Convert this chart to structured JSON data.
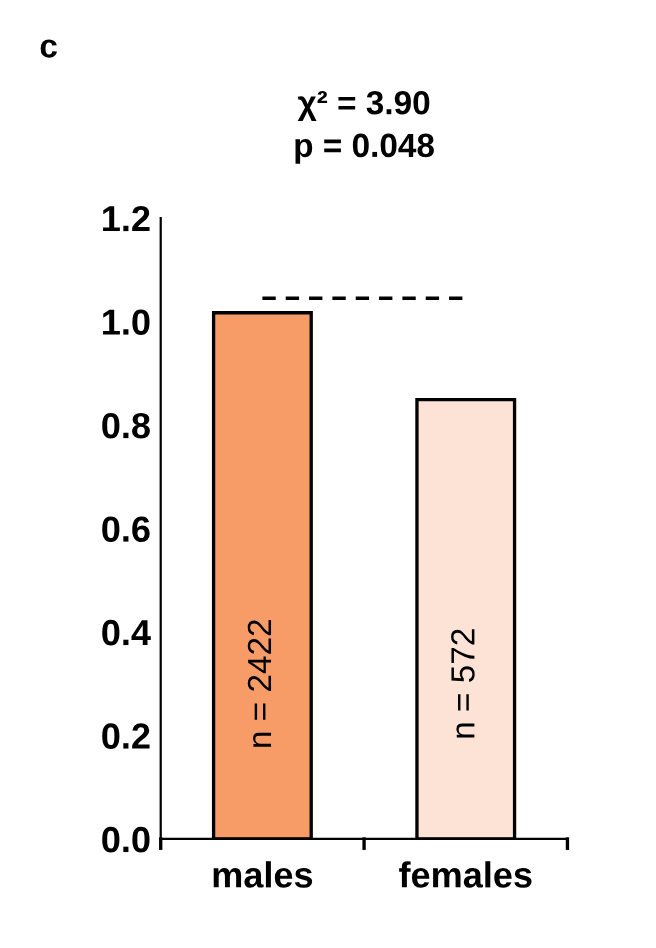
{
  "chart_data": {
    "type": "bar",
    "categories": [
      "males",
      "females"
    ],
    "values": [
      1.017,
      0.849
    ],
    "colors": [
      "#f79b67",
      "#fce3d6"
    ],
    "ylim": [
      0,
      1.2
    ],
    "yticks": [
      {
        "value": 0,
        "label": "0.0"
      },
      0.2,
      0.4,
      0.6,
      0.8,
      {
        "value": 1,
        "label": "1.0"
      },
      1.2
    ],
    "grid": false,
    "ref_lines": [
      {
        "axis": "y",
        "value": 1.045,
        "color": "#000000",
        "line_style": "dashed"
      }
    ],
    "annotations": [
      "c",
      "χ² = 3.90",
      "p = 0.048",
      "n = 2422",
      "n = 572"
    ]
  }
}
